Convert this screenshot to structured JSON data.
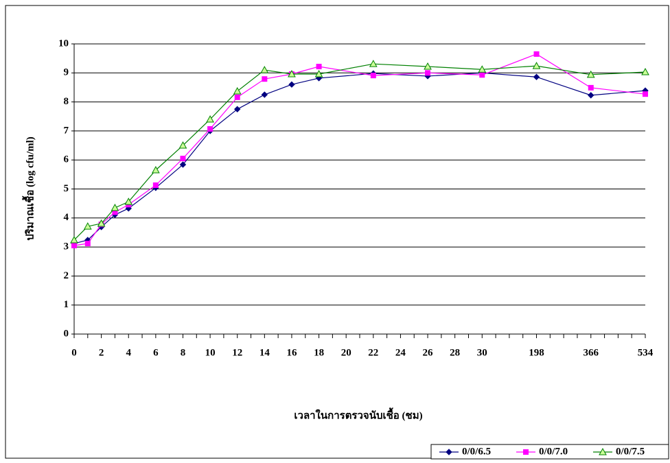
{
  "chart_data": {
    "type": "line",
    "x_label": "เวลาในการตรวจนับเชื้อ (ชม)",
    "y_label": "ปริมาณเชื้อ (log cfu/ml)",
    "categories": [
      "0",
      null,
      "2",
      null,
      "4",
      null,
      "6",
      null,
      "8",
      null,
      "10",
      null,
      "12",
      null,
      "14",
      null,
      "16",
      null,
      "18",
      null,
      "20",
      null,
      "22",
      null,
      "24",
      null,
      "26",
      null,
      "28",
      null,
      "30",
      null,
      null,
      null,
      "198",
      null,
      null,
      null,
      "366",
      null,
      null,
      null,
      "534"
    ],
    "series": [
      {
        "name": "0/0/6.5",
        "color": "#000080",
        "marker": "diamond",
        "values": [
          3.12,
          3.24,
          3.69,
          4.11,
          4.33,
          null,
          5.04,
          null,
          5.84,
          null,
          7.0,
          null,
          7.75,
          null,
          8.25,
          null,
          8.6,
          null,
          8.82,
          null,
          null,
          null,
          8.98,
          null,
          null,
          null,
          8.89,
          null,
          null,
          null,
          9.0,
          null,
          null,
          null,
          8.86,
          null,
          null,
          null,
          8.23,
          null,
          null,
          null,
          8.39
        ]
      },
      {
        "name": "0/0/7.0",
        "color": "#ff00ff",
        "marker": "square",
        "values": [
          3.05,
          3.12,
          3.78,
          4.2,
          4.46,
          null,
          5.13,
          null,
          6.05,
          null,
          7.07,
          null,
          8.16,
          null,
          8.79,
          null,
          8.96,
          null,
          9.22,
          null,
          null,
          null,
          8.91,
          null,
          null,
          null,
          9.0,
          null,
          null,
          null,
          8.93,
          null,
          null,
          null,
          9.65,
          null,
          null,
          null,
          8.49,
          null,
          null,
          null,
          8.27
        ]
      },
      {
        "name": "0/0/7.5",
        "color": "#008000",
        "marker": "triangle",
        "values": [
          3.24,
          3.71,
          3.81,
          4.35,
          4.56,
          null,
          5.65,
          null,
          6.5,
          null,
          7.4,
          null,
          8.37,
          null,
          9.1,
          null,
          8.96,
          null,
          8.96,
          null,
          null,
          null,
          9.31,
          null,
          null,
          null,
          9.22,
          null,
          null,
          null,
          9.12,
          null,
          null,
          null,
          9.24,
          null,
          null,
          null,
          8.94,
          null,
          null,
          null,
          9.03
        ]
      }
    ],
    "span_gaps": true,
    "ylim": [
      0,
      10
    ],
    "yticks": [
      0,
      1,
      2,
      3,
      4,
      5,
      6,
      7,
      8,
      9,
      10
    ],
    "grid": true,
    "legend": "bottom-right"
  }
}
